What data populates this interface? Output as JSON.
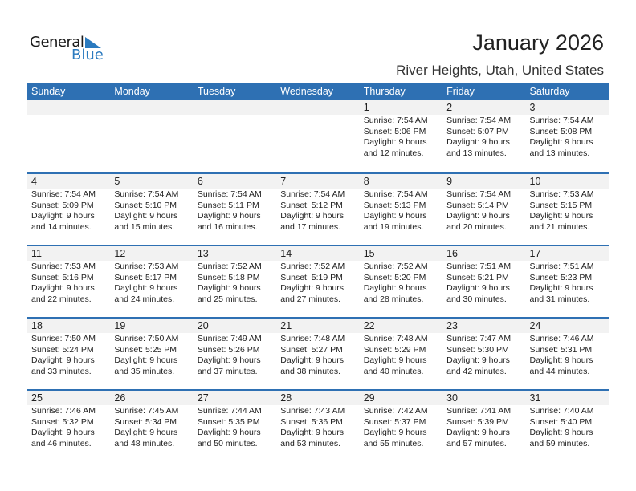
{
  "logo": {
    "line1": "General",
    "line2": "Blue",
    "brand_color": "#2a7abf"
  },
  "header": {
    "title": "January 2026",
    "subtitle": "River Heights, Utah, United States"
  },
  "colors": {
    "header_bg": "#2e70b3",
    "daynum_bg": "#f2f2f2"
  },
  "weekdays": [
    "Sunday",
    "Monday",
    "Tuesday",
    "Wednesday",
    "Thursday",
    "Friday",
    "Saturday"
  ],
  "weeks": [
    [
      null,
      null,
      null,
      null,
      {
        "day": "1",
        "sunrise": "Sunrise: 7:54 AM",
        "sunset": "Sunset: 5:06 PM",
        "daylight1": "Daylight: 9 hours",
        "daylight2": "and 12 minutes."
      },
      {
        "day": "2",
        "sunrise": "Sunrise: 7:54 AM",
        "sunset": "Sunset: 5:07 PM",
        "daylight1": "Daylight: 9 hours",
        "daylight2": "and 13 minutes."
      },
      {
        "day": "3",
        "sunrise": "Sunrise: 7:54 AM",
        "sunset": "Sunset: 5:08 PM",
        "daylight1": "Daylight: 9 hours",
        "daylight2": "and 13 minutes."
      }
    ],
    [
      {
        "day": "4",
        "sunrise": "Sunrise: 7:54 AM",
        "sunset": "Sunset: 5:09 PM",
        "daylight1": "Daylight: 9 hours",
        "daylight2": "and 14 minutes."
      },
      {
        "day": "5",
        "sunrise": "Sunrise: 7:54 AM",
        "sunset": "Sunset: 5:10 PM",
        "daylight1": "Daylight: 9 hours",
        "daylight2": "and 15 minutes."
      },
      {
        "day": "6",
        "sunrise": "Sunrise: 7:54 AM",
        "sunset": "Sunset: 5:11 PM",
        "daylight1": "Daylight: 9 hours",
        "daylight2": "and 16 minutes."
      },
      {
        "day": "7",
        "sunrise": "Sunrise: 7:54 AM",
        "sunset": "Sunset: 5:12 PM",
        "daylight1": "Daylight: 9 hours",
        "daylight2": "and 17 minutes."
      },
      {
        "day": "8",
        "sunrise": "Sunrise: 7:54 AM",
        "sunset": "Sunset: 5:13 PM",
        "daylight1": "Daylight: 9 hours",
        "daylight2": "and 19 minutes."
      },
      {
        "day": "9",
        "sunrise": "Sunrise: 7:54 AM",
        "sunset": "Sunset: 5:14 PM",
        "daylight1": "Daylight: 9 hours",
        "daylight2": "and 20 minutes."
      },
      {
        "day": "10",
        "sunrise": "Sunrise: 7:53 AM",
        "sunset": "Sunset: 5:15 PM",
        "daylight1": "Daylight: 9 hours",
        "daylight2": "and 21 minutes."
      }
    ],
    [
      {
        "day": "11",
        "sunrise": "Sunrise: 7:53 AM",
        "sunset": "Sunset: 5:16 PM",
        "daylight1": "Daylight: 9 hours",
        "daylight2": "and 22 minutes."
      },
      {
        "day": "12",
        "sunrise": "Sunrise: 7:53 AM",
        "sunset": "Sunset: 5:17 PM",
        "daylight1": "Daylight: 9 hours",
        "daylight2": "and 24 minutes."
      },
      {
        "day": "13",
        "sunrise": "Sunrise: 7:52 AM",
        "sunset": "Sunset: 5:18 PM",
        "daylight1": "Daylight: 9 hours",
        "daylight2": "and 25 minutes."
      },
      {
        "day": "14",
        "sunrise": "Sunrise: 7:52 AM",
        "sunset": "Sunset: 5:19 PM",
        "daylight1": "Daylight: 9 hours",
        "daylight2": "and 27 minutes."
      },
      {
        "day": "15",
        "sunrise": "Sunrise: 7:52 AM",
        "sunset": "Sunset: 5:20 PM",
        "daylight1": "Daylight: 9 hours",
        "daylight2": "and 28 minutes."
      },
      {
        "day": "16",
        "sunrise": "Sunrise: 7:51 AM",
        "sunset": "Sunset: 5:21 PM",
        "daylight1": "Daylight: 9 hours",
        "daylight2": "and 30 minutes."
      },
      {
        "day": "17",
        "sunrise": "Sunrise: 7:51 AM",
        "sunset": "Sunset: 5:23 PM",
        "daylight1": "Daylight: 9 hours",
        "daylight2": "and 31 minutes."
      }
    ],
    [
      {
        "day": "18",
        "sunrise": "Sunrise: 7:50 AM",
        "sunset": "Sunset: 5:24 PM",
        "daylight1": "Daylight: 9 hours",
        "daylight2": "and 33 minutes."
      },
      {
        "day": "19",
        "sunrise": "Sunrise: 7:50 AM",
        "sunset": "Sunset: 5:25 PM",
        "daylight1": "Daylight: 9 hours",
        "daylight2": "and 35 minutes."
      },
      {
        "day": "20",
        "sunrise": "Sunrise: 7:49 AM",
        "sunset": "Sunset: 5:26 PM",
        "daylight1": "Daylight: 9 hours",
        "daylight2": "and 37 minutes."
      },
      {
        "day": "21",
        "sunrise": "Sunrise: 7:48 AM",
        "sunset": "Sunset: 5:27 PM",
        "daylight1": "Daylight: 9 hours",
        "daylight2": "and 38 minutes."
      },
      {
        "day": "22",
        "sunrise": "Sunrise: 7:48 AM",
        "sunset": "Sunset: 5:29 PM",
        "daylight1": "Daylight: 9 hours",
        "daylight2": "and 40 minutes."
      },
      {
        "day": "23",
        "sunrise": "Sunrise: 7:47 AM",
        "sunset": "Sunset: 5:30 PM",
        "daylight1": "Daylight: 9 hours",
        "daylight2": "and 42 minutes."
      },
      {
        "day": "24",
        "sunrise": "Sunrise: 7:46 AM",
        "sunset": "Sunset: 5:31 PM",
        "daylight1": "Daylight: 9 hours",
        "daylight2": "and 44 minutes."
      }
    ],
    [
      {
        "day": "25",
        "sunrise": "Sunrise: 7:46 AM",
        "sunset": "Sunset: 5:32 PM",
        "daylight1": "Daylight: 9 hours",
        "daylight2": "and 46 minutes."
      },
      {
        "day": "26",
        "sunrise": "Sunrise: 7:45 AM",
        "sunset": "Sunset: 5:34 PM",
        "daylight1": "Daylight: 9 hours",
        "daylight2": "and 48 minutes."
      },
      {
        "day": "27",
        "sunrise": "Sunrise: 7:44 AM",
        "sunset": "Sunset: 5:35 PM",
        "daylight1": "Daylight: 9 hours",
        "daylight2": "and 50 minutes."
      },
      {
        "day": "28",
        "sunrise": "Sunrise: 7:43 AM",
        "sunset": "Sunset: 5:36 PM",
        "daylight1": "Daylight: 9 hours",
        "daylight2": "and 53 minutes."
      },
      {
        "day": "29",
        "sunrise": "Sunrise: 7:42 AM",
        "sunset": "Sunset: 5:37 PM",
        "daylight1": "Daylight: 9 hours",
        "daylight2": "and 55 minutes."
      },
      {
        "day": "30",
        "sunrise": "Sunrise: 7:41 AM",
        "sunset": "Sunset: 5:39 PM",
        "daylight1": "Daylight: 9 hours",
        "daylight2": "and 57 minutes."
      },
      {
        "day": "31",
        "sunrise": "Sunrise: 7:40 AM",
        "sunset": "Sunset: 5:40 PM",
        "daylight1": "Daylight: 9 hours",
        "daylight2": "and 59 minutes."
      }
    ]
  ]
}
